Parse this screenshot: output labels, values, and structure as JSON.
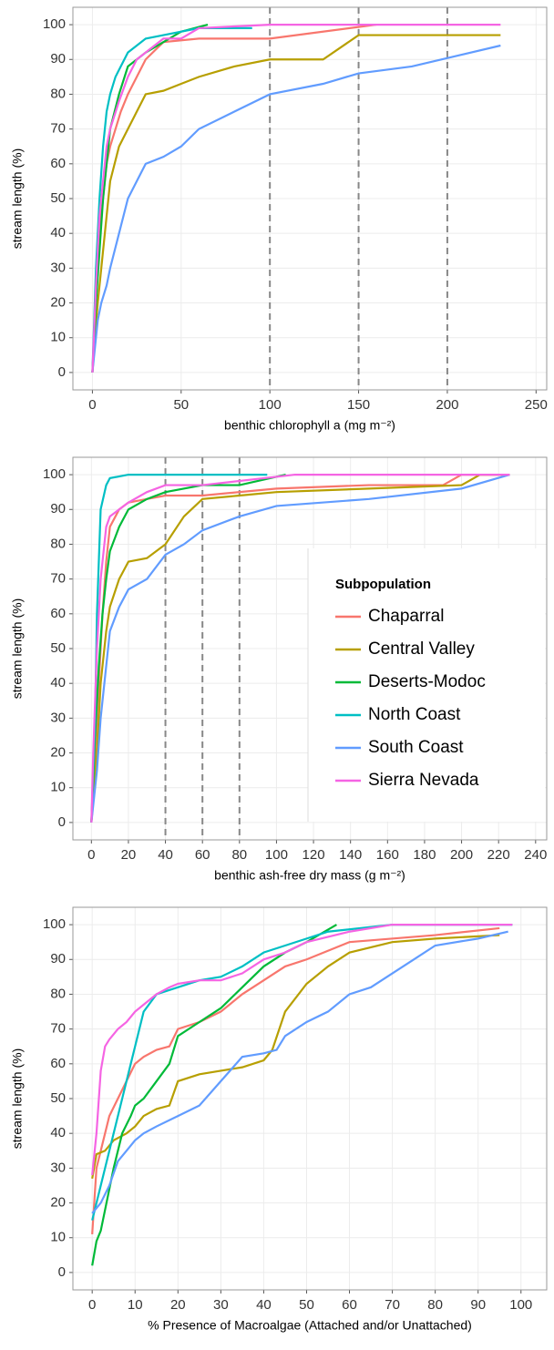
{
  "chart_data": [
    {
      "type": "line",
      "xlabel": "benthic chlorophyll a (mg m⁻²)",
      "ylabel": "stream length (%)",
      "xlim": [
        -11,
        256
      ],
      "ylim": [
        -5,
        105
      ],
      "xticks": [
        0,
        50,
        100,
        150,
        200,
        250
      ],
      "yticks": [
        0,
        10,
        20,
        30,
        40,
        50,
        60,
        70,
        80,
        90,
        100
      ],
      "grid": true,
      "vlines": [
        100,
        150,
        200
      ],
      "series": [
        {
          "color": "#F8766D",
          "x": [
            0,
            2,
            4,
            6,
            8,
            10,
            13,
            16,
            20,
            25,
            30,
            40,
            60,
            100,
            160
          ],
          "values": [
            0,
            20,
            40,
            50,
            60,
            65,
            70,
            75,
            80,
            85,
            90,
            95,
            96,
            96,
            100
          ]
        },
        {
          "color": "#B79F00",
          "x": [
            0,
            3,
            5,
            8,
            10,
            15,
            20,
            25,
            30,
            40,
            50,
            60,
            80,
            100,
            130,
            150,
            230
          ],
          "values": [
            0,
            20,
            30,
            45,
            55,
            65,
            70,
            75,
            80,
            81,
            83,
            85,
            88,
            90,
            90,
            97,
            97
          ]
        },
        {
          "color": "#00BA38",
          "x": [
            0,
            2,
            4,
            6,
            8,
            10,
            15,
            20,
            30,
            40,
            50,
            65
          ],
          "values": [
            0,
            20,
            35,
            50,
            60,
            70,
            80,
            88,
            92,
            95,
            98,
            100
          ]
        },
        {
          "color": "#00BFC4",
          "x": [
            0,
            2,
            4,
            6,
            8,
            10,
            13,
            16,
            20,
            30,
            40,
            60,
            90
          ],
          "values": [
            0,
            30,
            50,
            65,
            75,
            80,
            85,
            88,
            92,
            96,
            97,
            99,
            99
          ]
        },
        {
          "color": "#619CFF",
          "x": [
            0,
            3,
            5,
            8,
            10,
            15,
            20,
            25,
            30,
            40,
            50,
            60,
            80,
            100,
            130,
            150,
            180,
            230
          ],
          "values": [
            0,
            15,
            20,
            25,
            30,
            40,
            50,
            55,
            60,
            62,
            65,
            70,
            75,
            80,
            83,
            86,
            88,
            94
          ]
        },
        {
          "color": "#F564E3",
          "x": [
            0,
            2,
            4,
            6,
            8,
            10,
            15,
            20,
            25,
            30,
            40,
            50,
            60,
            100,
            230
          ],
          "values": [
            0,
            25,
            45,
            55,
            65,
            70,
            78,
            85,
            90,
            92,
            96,
            96,
            99,
            100,
            100
          ]
        }
      ]
    },
    {
      "type": "line",
      "xlabel": "benthic ash-free dry mass (g m⁻²)",
      "ylabel": "stream length (%)",
      "xlim": [
        -10,
        246
      ],
      "ylim": [
        -5,
        105
      ],
      "xticks": [
        0,
        20,
        40,
        60,
        80,
        100,
        120,
        140,
        160,
        180,
        200,
        220,
        240
      ],
      "yticks": [
        0,
        10,
        20,
        30,
        40,
        50,
        60,
        70,
        80,
        90,
        100
      ],
      "grid": true,
      "vlines": [
        40,
        60,
        80
      ],
      "legend": "right",
      "legend_title": "Subpopulation",
      "series": [
        {
          "name": "Chaparral",
          "color": "#F8766D",
          "x": [
            0,
            2,
            4,
            6,
            8,
            10,
            15,
            20,
            30,
            40,
            60,
            100,
            150,
            190,
            200,
            226
          ],
          "values": [
            0,
            20,
            40,
            60,
            75,
            85,
            90,
            92,
            93,
            94,
            94,
            96,
            97,
            97,
            100,
            100
          ]
        },
        {
          "name": "Central Valley",
          "color": "#B79F00",
          "x": [
            0,
            3,
            5,
            8,
            10,
            15,
            20,
            30,
            40,
            50,
            60,
            80,
            100,
            150,
            200,
            210,
            226
          ],
          "values": [
            0,
            20,
            40,
            55,
            62,
            70,
            75,
            76,
            80,
            88,
            93,
            94,
            95,
            96,
            97,
            100,
            100
          ]
        },
        {
          "name": "Deserts-Modoc",
          "color": "#00BA38",
          "x": [
            0,
            2,
            4,
            6,
            8,
            10,
            15,
            20,
            30,
            40,
            60,
            80,
            105
          ],
          "values": [
            0,
            25,
            45,
            60,
            70,
            78,
            85,
            90,
            93,
            95,
            97,
            97,
            100
          ]
        },
        {
          "name": "North Coast",
          "color": "#00BFC4",
          "x": [
            0,
            2,
            3,
            5,
            8,
            10,
            20,
            95
          ],
          "values": [
            0,
            30,
            60,
            90,
            97,
            99,
            100,
            100
          ]
        },
        {
          "name": "South Coast",
          "color": "#619CFF",
          "x": [
            0,
            3,
            5,
            8,
            10,
            15,
            20,
            30,
            40,
            50,
            60,
            80,
            100,
            150,
            200,
            226
          ],
          "values": [
            0,
            15,
            30,
            45,
            55,
            62,
            67,
            70,
            77,
            80,
            84,
            88,
            91,
            93,
            96,
            100
          ]
        },
        {
          "name": "Sierra Nevada",
          "color": "#F564E3",
          "x": [
            0,
            1,
            3,
            5,
            8,
            10,
            15,
            20,
            30,
            40,
            60,
            110,
            160,
            226
          ],
          "values": [
            0,
            20,
            50,
            70,
            85,
            88,
            90,
            92,
            95,
            97,
            97,
            100,
            100,
            100
          ]
        }
      ]
    },
    {
      "type": "line",
      "xlabel": "% Presence of Macroalgae (Attached and/or Unattached)",
      "ylabel": "stream length (%)",
      "xlim": [
        -4.5,
        106
      ],
      "ylim": [
        -5,
        105
      ],
      "xticks": [
        0,
        10,
        20,
        30,
        40,
        50,
        60,
        70,
        80,
        90,
        100
      ],
      "yticks": [
        0,
        10,
        20,
        30,
        40,
        50,
        60,
        70,
        80,
        90,
        100
      ],
      "grid": true,
      "series": [
        {
          "color": "#F8766D",
          "x": [
            0,
            1,
            2,
            4,
            6,
            8,
            10,
            12,
            15,
            18,
            20,
            25,
            30,
            35,
            40,
            45,
            50,
            60,
            80,
            95
          ],
          "values": [
            11,
            30,
            35,
            45,
            50,
            55,
            60,
            62,
            64,
            65,
            70,
            72,
            75,
            80,
            84,
            88,
            90,
            95,
            97,
            99
          ]
        },
        {
          "color": "#B79F00",
          "x": [
            0,
            1,
            3,
            5,
            8,
            10,
            12,
            15,
            18,
            20,
            25,
            30,
            35,
            40,
            42,
            45,
            50,
            55,
            60,
            70,
            80,
            95
          ],
          "values": [
            27,
            34,
            35,
            38,
            40,
            42,
            45,
            47,
            48,
            55,
            57,
            58,
            59,
            61,
            64,
            75,
            83,
            88,
            92,
            95,
            96,
            97
          ]
        },
        {
          "color": "#00BA38",
          "x": [
            0,
            1,
            2,
            3,
            5,
            7,
            9,
            10,
            12,
            15,
            18,
            20,
            25,
            30,
            35,
            40,
            45,
            50,
            57
          ],
          "values": [
            2,
            9,
            12,
            18,
            30,
            40,
            45,
            48,
            50,
            55,
            60,
            68,
            72,
            76,
            82,
            88,
            92,
            95,
            100
          ]
        },
        {
          "color": "#00BFC4",
          "x": [
            0,
            1,
            2,
            3,
            5,
            7,
            9,
            10,
            12,
            15,
            20,
            25,
            30,
            35,
            40,
            45,
            50,
            55,
            70,
            98
          ],
          "values": [
            15,
            20,
            25,
            30,
            40,
            50,
            60,
            65,
            75,
            80,
            82,
            84,
            85,
            88,
            92,
            94,
            96,
            98,
            100,
            100
          ]
        },
        {
          "color": "#619CFF",
          "x": [
            0,
            2,
            4,
            6,
            8,
            10,
            12,
            15,
            20,
            25,
            30,
            35,
            40,
            43,
            45,
            50,
            55,
            60,
            65,
            70,
            75,
            80,
            90,
            97
          ],
          "values": [
            17,
            20,
            25,
            32,
            35,
            38,
            40,
            42,
            45,
            48,
            55,
            62,
            63,
            64,
            68,
            72,
            75,
            80,
            82,
            86,
            90,
            94,
            96,
            98
          ]
        },
        {
          "color": "#F564E3",
          "x": [
            0,
            1,
            2,
            3,
            4,
            6,
            8,
            10,
            12,
            15,
            18,
            20,
            25,
            30,
            35,
            40,
            45,
            50,
            60,
            70,
            98
          ],
          "values": [
            28,
            40,
            58,
            65,
            67,
            70,
            72,
            75,
            77,
            80,
            82,
            83,
            84,
            84,
            86,
            90,
            92,
            95,
            98,
            100,
            100
          ]
        }
      ]
    }
  ]
}
